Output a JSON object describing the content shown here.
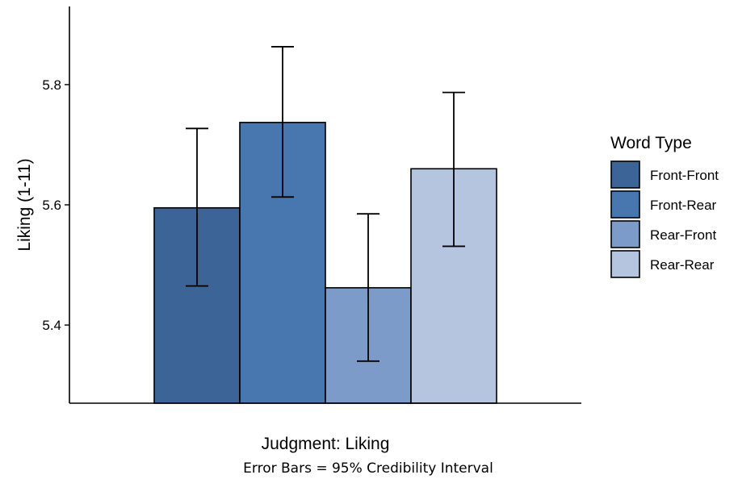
{
  "chart_data": {
    "type": "bar",
    "xlabel": "Judgment: Liking",
    "ylabel": "Liking (1-11)",
    "caption": "Error Bars = 95% Credibility Interval",
    "categories": [
      "Judgment: Liking"
    ],
    "ylim": [
      5.27,
      5.93
    ],
    "yticks": [
      5.4,
      5.6,
      5.8
    ],
    "ytick_labels": [
      "5.4",
      "5.6",
      "5.8"
    ],
    "grid": false,
    "legend": {
      "title": "Word Type",
      "position": "right"
    },
    "series": [
      {
        "name": "Front-Front",
        "color": "#3c6497",
        "value": 5.595,
        "ci_low": 5.465,
        "ci_high": 5.727
      },
      {
        "name": "Front-Rear",
        "color": "#4876ae",
        "value": 5.737,
        "ci_low": 5.613,
        "ci_high": 5.863
      },
      {
        "name": "Rear-Front",
        "color": "#7d9bc8",
        "value": 5.462,
        "ci_low": 5.34,
        "ci_high": 5.585
      },
      {
        "name": "Rear-Rear",
        "color": "#b6c5df",
        "value": 5.66,
        "ci_low": 5.531,
        "ci_high": 5.787
      }
    ]
  }
}
